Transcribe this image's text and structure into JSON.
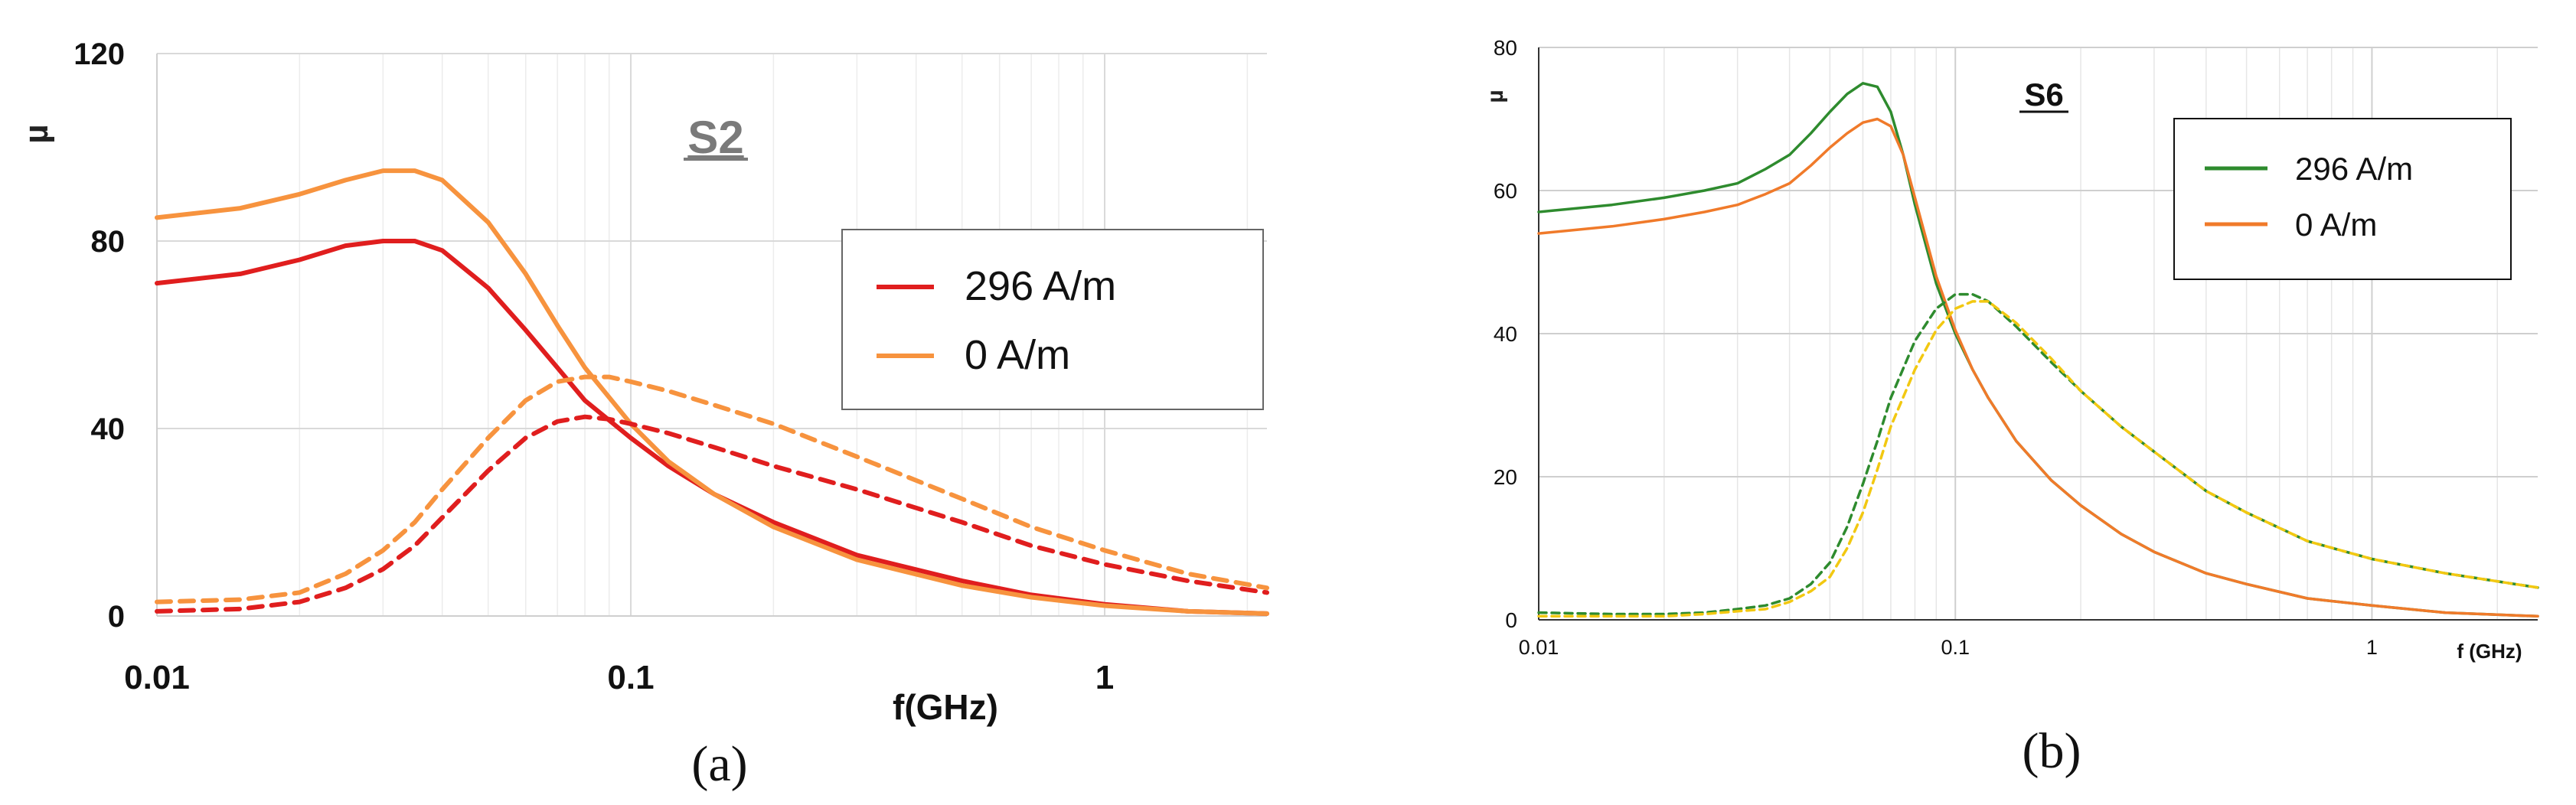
{
  "figure": {
    "captions": [
      "(a)",
      "(b)"
    ]
  },
  "chart_data": [
    {
      "type": "line",
      "panel_label": "(a)",
      "title": "S2",
      "xlabel": "f(GHz)",
      "ylabel": "µ",
      "x_scale": "log",
      "xlim": [
        0.01,
        2.2
      ],
      "ylim": [
        0,
        120
      ],
      "x_ticks": [
        0.01,
        0.1,
        1
      ],
      "x_tick_labels": [
        "0.01",
        "0.1",
        "1"
      ],
      "y_ticks": [
        0,
        40,
        80,
        120
      ],
      "y_tick_labels": [
        "0",
        "40",
        "80",
        "120"
      ],
      "grid": true,
      "legend_position": "right",
      "legend": [
        {
          "label": "296 A/m",
          "color": "#e01e1e"
        },
        {
          "label": "0 A/m",
          "color": "#f7933e"
        }
      ],
      "series": [
        {
          "name": "296 A/m",
          "color": "#e01e1e",
          "dash": "solid",
          "x": [
            0.01,
            0.015,
            0.02,
            0.025,
            0.03,
            0.035,
            0.04,
            0.05,
            0.06,
            0.07,
            0.08,
            0.1,
            0.12,
            0.15,
            0.2,
            0.3,
            0.5,
            0.7,
            1.0,
            1.5,
            2.2
          ],
          "y": [
            71,
            73,
            76,
            79,
            80,
            80,
            78,
            70,
            61,
            53,
            46,
            38,
            32,
            26,
            20,
            13,
            7.5,
            4.5,
            2.5,
            1.0,
            0.5
          ]
        },
        {
          "name": "0 A/m",
          "color": "#f7933e",
          "dash": "solid",
          "x": [
            0.01,
            0.015,
            0.02,
            0.025,
            0.03,
            0.035,
            0.04,
            0.05,
            0.06,
            0.07,
            0.08,
            0.1,
            0.12,
            0.15,
            0.2,
            0.3,
            0.5,
            0.7,
            1.0,
            1.5,
            2.2
          ],
          "y": [
            85,
            87,
            90,
            93,
            95,
            95,
            93,
            84,
            73,
            62,
            53,
            41,
            33,
            26,
            19,
            12,
            6.5,
            4.0,
            2.2,
            1.0,
            0.5
          ]
        },
        {
          "color": "#e01e1e",
          "dash": "dashed",
          "x": [
            0.01,
            0.015,
            0.02,
            0.025,
            0.03,
            0.035,
            0.04,
            0.05,
            0.06,
            0.07,
            0.08,
            0.09,
            0.1,
            0.12,
            0.15,
            0.2,
            0.3,
            0.5,
            0.7,
            1.0,
            1.5,
            2.2
          ],
          "y": [
            1,
            1.5,
            3,
            6,
            10,
            15,
            21,
            31,
            38,
            41.5,
            42.5,
            42,
            41,
            39,
            36,
            32,
            27,
            20,
            15,
            11,
            7.5,
            5
          ]
        },
        {
          "color": "#f7933e",
          "dash": "dashed",
          "x": [
            0.01,
            0.015,
            0.02,
            0.025,
            0.03,
            0.035,
            0.04,
            0.05,
            0.06,
            0.07,
            0.08,
            0.09,
            0.1,
            0.12,
            0.15,
            0.2,
            0.3,
            0.5,
            0.7,
            1.0,
            1.5,
            2.2
          ],
          "y": [
            3,
            3.5,
            5,
            9,
            14,
            20,
            27,
            38,
            46,
            50,
            51,
            51,
            50,
            48,
            45,
            41,
            34,
            25,
            19,
            14,
            9,
            6
          ]
        }
      ]
    },
    {
      "type": "line",
      "panel_label": "(b)",
      "title": "S6",
      "xlabel": "f (GHz)",
      "ylabel": "µ",
      "x_scale": "log",
      "xlim": [
        0.01,
        2.5
      ],
      "ylim": [
        0,
        80
      ],
      "x_ticks": [
        0.01,
        0.1,
        1
      ],
      "x_tick_labels": [
        "0.01",
        "0.1",
        "1"
      ],
      "y_ticks": [
        0,
        20,
        40,
        60,
        80
      ],
      "y_tick_labels": [
        "0",
        "20",
        "40",
        "60",
        "80"
      ],
      "grid": true,
      "legend_position": "top-right",
      "legend": [
        {
          "label": "296 A/m",
          "color": "#2e8b2e"
        },
        {
          "label": "0 A/m",
          "color": "#f07a2a"
        }
      ],
      "series": [
        {
          "name": "296 A/m",
          "color": "#2e8b2e",
          "dash": "solid",
          "x": [
            0.01,
            0.015,
            0.02,
            0.025,
            0.03,
            0.035,
            0.04,
            0.045,
            0.05,
            0.055,
            0.06,
            0.065,
            0.07,
            0.075,
            0.08,
            0.09,
            0.1,
            0.11,
            0.12,
            0.14,
            0.17,
            0.2,
            0.25,
            0.3,
            0.4,
            0.5,
            0.7,
            1.0,
            1.5,
            2.5
          ],
          "y": [
            57,
            58,
            59,
            60,
            61,
            63,
            65,
            68,
            71,
            73.5,
            75,
            74.5,
            71,
            65,
            58,
            47,
            40,
            35,
            31,
            25,
            19.5,
            16,
            12,
            9.5,
            6.5,
            5,
            3,
            2,
            1,
            0.5
          ]
        },
        {
          "name": "0 A/m",
          "color": "#f07a2a",
          "dash": "solid",
          "x": [
            0.01,
            0.015,
            0.02,
            0.025,
            0.03,
            0.035,
            0.04,
            0.045,
            0.05,
            0.055,
            0.06,
            0.065,
            0.07,
            0.075,
            0.08,
            0.09,
            0.1,
            0.11,
            0.12,
            0.14,
            0.17,
            0.2,
            0.25,
            0.3,
            0.4,
            0.5,
            0.7,
            1.0,
            1.5,
            2.5
          ],
          "y": [
            54,
            55,
            56,
            57,
            58,
            59.5,
            61,
            63.5,
            66,
            68,
            69.5,
            70,
            69,
            65,
            59,
            48,
            40.5,
            35,
            31,
            25,
            19.5,
            16,
            12,
            9.5,
            6.5,
            5,
            3,
            2,
            1,
            0.5
          ]
        },
        {
          "color": "#2e8b2e",
          "dash": "dashed",
          "x": [
            0.01,
            0.015,
            0.02,
            0.025,
            0.03,
            0.035,
            0.04,
            0.045,
            0.05,
            0.055,
            0.06,
            0.065,
            0.07,
            0.08,
            0.09,
            0.1,
            0.11,
            0.12,
            0.14,
            0.17,
            0.2,
            0.25,
            0.3,
            0.4,
            0.5,
            0.7,
            1.0,
            1.5,
            2.5
          ],
          "y": [
            1,
            0.8,
            0.8,
            1,
            1.5,
            2,
            3,
            5,
            8,
            13,
            19,
            25,
            31,
            39,
            43.5,
            45.5,
            45.5,
            44.5,
            41,
            36,
            32,
            27,
            23.5,
            18,
            15,
            11,
            8.5,
            6.5,
            4.5
          ]
        },
        {
          "color": "#f2c811",
          "dash": "dashed",
          "x": [
            0.01,
            0.015,
            0.02,
            0.025,
            0.03,
            0.035,
            0.04,
            0.045,
            0.05,
            0.055,
            0.06,
            0.065,
            0.07,
            0.08,
            0.09,
            0.1,
            0.11,
            0.12,
            0.14,
            0.17,
            0.2,
            0.25,
            0.3,
            0.4,
            0.5,
            0.7,
            1.0,
            1.5,
            2.5
          ],
          "y": [
            0.5,
            0.5,
            0.5,
            0.8,
            1.2,
            1.5,
            2.5,
            4,
            6,
            10,
            15,
            21,
            27,
            35,
            40.5,
            43.5,
            44.5,
            44.5,
            41.5,
            36.5,
            32,
            27,
            23.5,
            18,
            15,
            11,
            8.5,
            6.5,
            4.5
          ]
        }
      ]
    }
  ]
}
